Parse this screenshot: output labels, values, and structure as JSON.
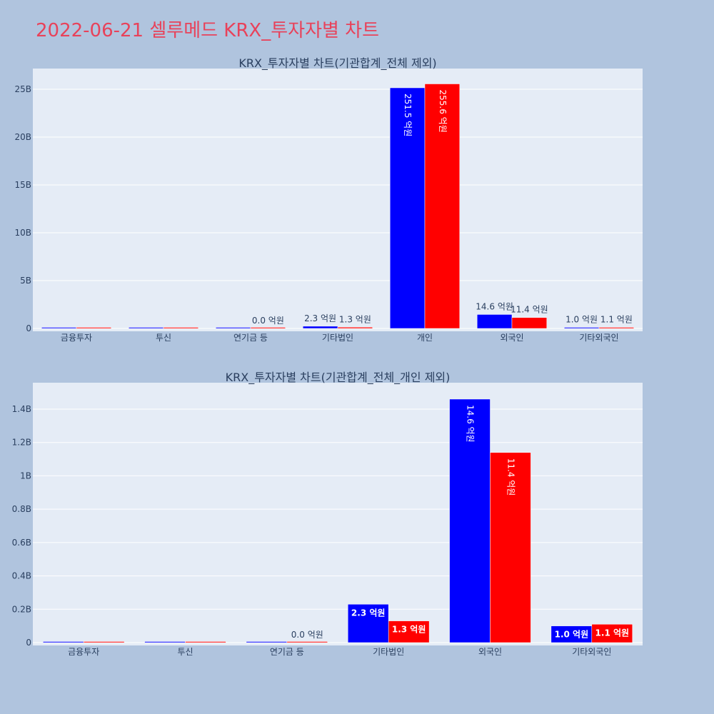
{
  "page_title": "2022-06-21 셀루메드 KRX_투자자별 차트",
  "colors": {
    "buy": "#0000ff",
    "sell": "#ff0000",
    "title": "#e8425a",
    "plot_bg": "#e5ecf6",
    "page_bg": "#b0c4de"
  },
  "chart_data": [
    {
      "type": "bar",
      "title": "KRX_투자자별 차트(기관합계_전체 제외)",
      "categories": [
        "금융투자",
        "투신",
        "연기금 등",
        "기타법인",
        "개인",
        "외국인",
        "기타외국인"
      ],
      "series": [
        {
          "color": "#0000ff",
          "values": [
            0,
            0,
            0,
            230000000,
            25150000000,
            1460000000,
            100000000
          ],
          "labels": [
            "",
            "",
            "",
            "2.3 억원",
            "251.5 억원",
            "14.6 억원",
            "1.0 억원"
          ]
        },
        {
          "color": "#ff0000",
          "values": [
            0,
            0,
            0,
            130000000,
            25560000000,
            1140000000,
            110000000
          ],
          "labels": [
            "",
            "",
            "0.0 억원",
            "1.3 억원",
            "255.6 억원",
            "11.4 억원",
            "1.1 억원"
          ]
        }
      ],
      "yticks": [
        "0",
        "5B",
        "10B",
        "15B",
        "20B",
        "25B"
      ],
      "ylim": [
        0,
        27000000000
      ],
      "grid": true
    },
    {
      "type": "bar",
      "title": "KRX_투자자별 차트(기관합계_전체_개인 제외)",
      "categories": [
        "금융투자",
        "투신",
        "연기금 등",
        "기타법인",
        "외국인",
        "기타외국인"
      ],
      "series": [
        {
          "color": "#0000ff",
          "values": [
            0,
            0,
            0,
            230000000,
            1460000000,
            100000000
          ],
          "labels": [
            "",
            "",
            "",
            "2.3 억원",
            "14.6 억원",
            "1.0 억원"
          ]
        },
        {
          "color": "#ff0000",
          "values": [
            0,
            0,
            0,
            130000000,
            1140000000,
            110000000
          ],
          "labels": [
            "",
            "",
            "0.0 억원",
            "1.3 억원",
            "11.4 억원",
            "1.1 억원"
          ]
        }
      ],
      "yticks": [
        "0",
        "0.2B",
        "0.4B",
        "0.6B",
        "0.8B",
        "1B",
        "1.2B",
        "1.4B"
      ],
      "ylim": [
        0,
        1550000000
      ],
      "grid": true
    }
  ]
}
